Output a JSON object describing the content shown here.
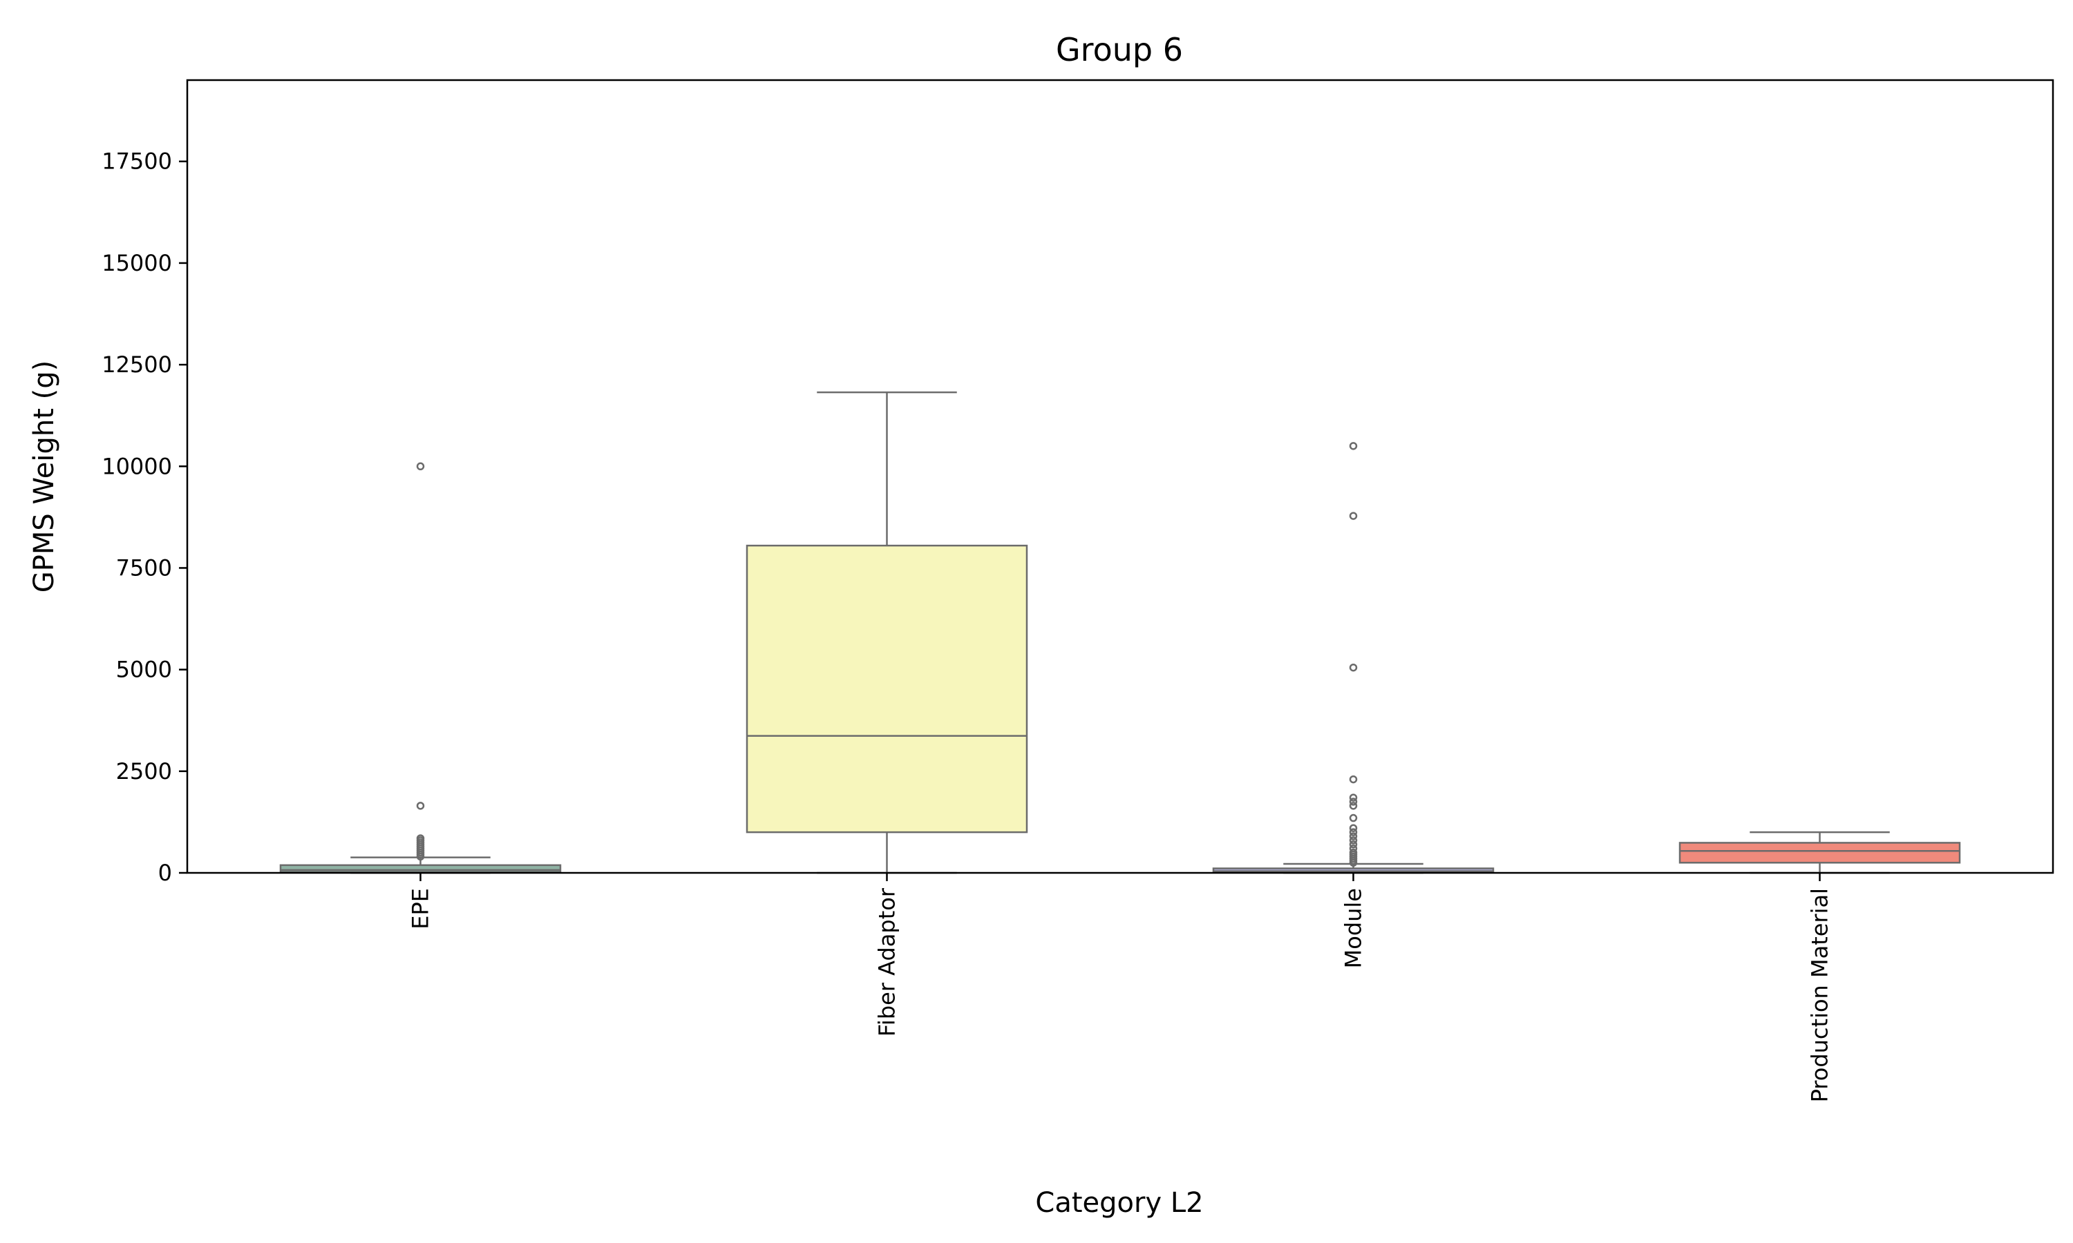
{
  "chart_data": {
    "type": "box",
    "title": "Group 6",
    "xlabel": "Category L2",
    "ylabel": "GPMS Weight (g)",
    "ylim": [
      0,
      19500
    ],
    "yticks": [
      0,
      2500,
      5000,
      7500,
      10000,
      12500,
      15000,
      17500
    ],
    "grid": false,
    "categories": [
      "EPE",
      "Fiber Adaptor",
      "Module",
      "Production Material"
    ],
    "boxes": [
      {
        "category": "EPE",
        "whisker_low": 0,
        "q1": 20,
        "median": 70,
        "q3": 190,
        "whisker_high": 380,
        "color": "#8fb3a4",
        "outliers": [
          10000,
          1650,
          850,
          800,
          750,
          700,
          650,
          600,
          550,
          500,
          450,
          400
        ]
      },
      {
        "category": "Fiber Adaptor",
        "whisker_low": 0,
        "q1": 1000,
        "median": 3370,
        "q3": 8050,
        "whisker_high": 11820,
        "color": "#f7f6bc",
        "outliers": []
      },
      {
        "category": "Module",
        "whisker_low": 0,
        "q1": 10,
        "median": 40,
        "q3": 110,
        "whisker_high": 220,
        "color": "#aaa8cc",
        "outliers": [
          10500,
          8780,
          5050,
          2300,
          1850,
          1750,
          1650,
          1350,
          1100,
          1000,
          900,
          800,
          700,
          600,
          500,
          450,
          400,
          350,
          300,
          250
        ]
      },
      {
        "category": "Production Material",
        "whisker_low": 0,
        "q1": 250,
        "median": 540,
        "q3": 740,
        "whisker_high": 1000,
        "color": "#f08a7c",
        "outliers": []
      }
    ]
  }
}
